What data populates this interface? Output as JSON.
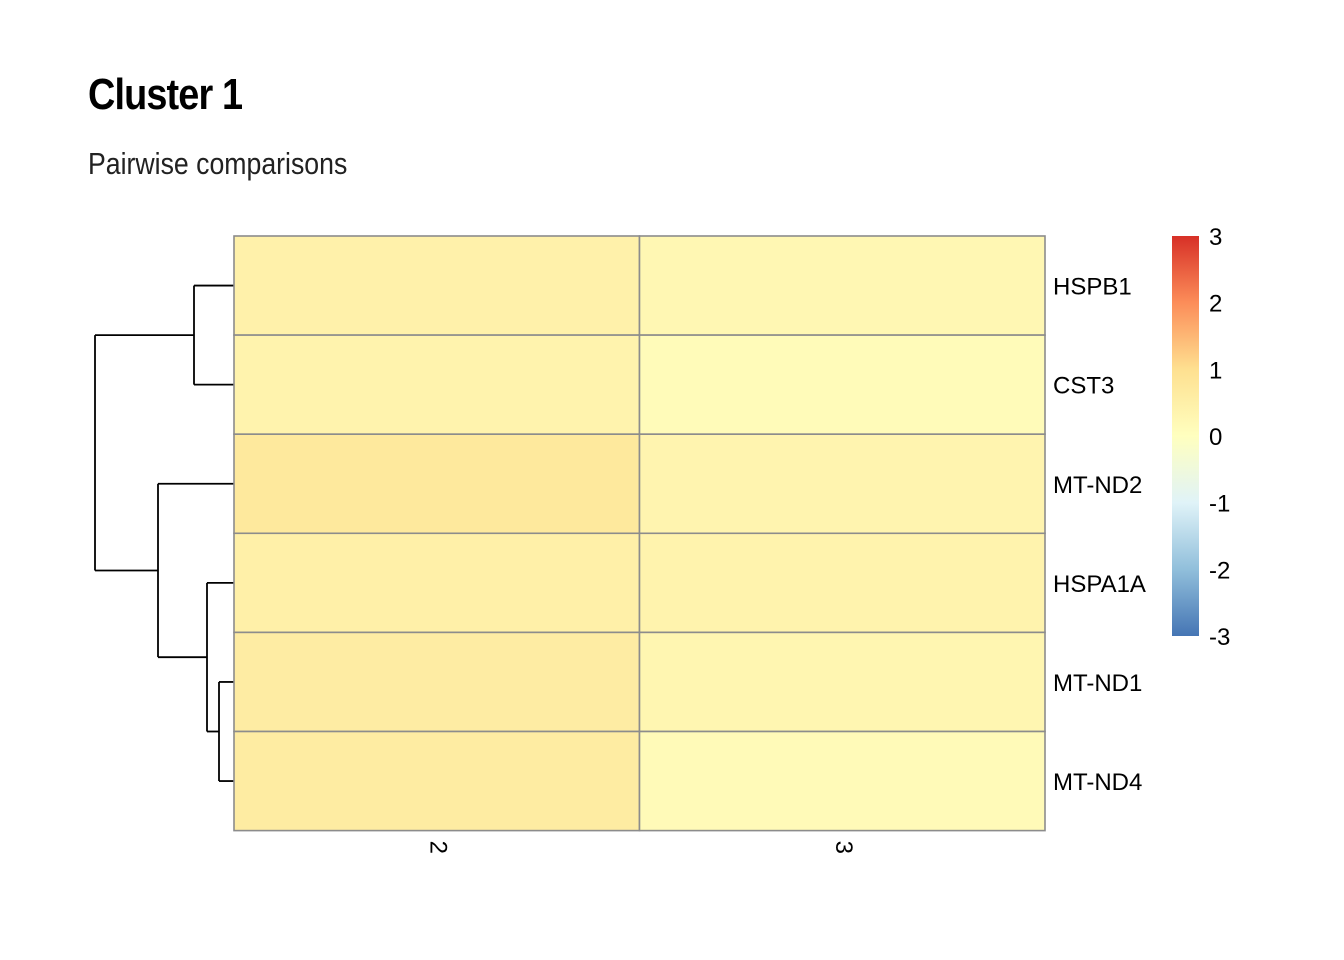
{
  "header": {
    "title": "Cluster 1",
    "subtitle": "Pairwise comparisons"
  },
  "chart_data": {
    "type": "heatmap",
    "title": "Cluster 1",
    "subtitle": "Pairwise comparisons",
    "rows": [
      "HSPB1",
      "CST3",
      "MT-ND2",
      "HSPA1A",
      "MT-ND1",
      "MT-ND4"
    ],
    "columns": [
      "2",
      "3"
    ],
    "values": [
      [
        0.45,
        0.25
      ],
      [
        0.38,
        0.12
      ],
      [
        0.72,
        0.35
      ],
      [
        0.48,
        0.38
      ],
      [
        0.6,
        0.3
      ],
      [
        0.62,
        0.15
      ]
    ],
    "color_scale": {
      "min": -3,
      "max": 3,
      "ticks": [
        3,
        2,
        1,
        0,
        -1,
        -2,
        -3
      ],
      "palette": [
        "#4575B4",
        "#91BFDB",
        "#E0F3F8",
        "#FFFFBF",
        "#FEE090",
        "#FC8D59",
        "#D73027"
      ]
    },
    "row_dendrogram": true,
    "column_dendrogram": false,
    "legend_position": "right",
    "cell_border_color": "#8C8C8C"
  }
}
